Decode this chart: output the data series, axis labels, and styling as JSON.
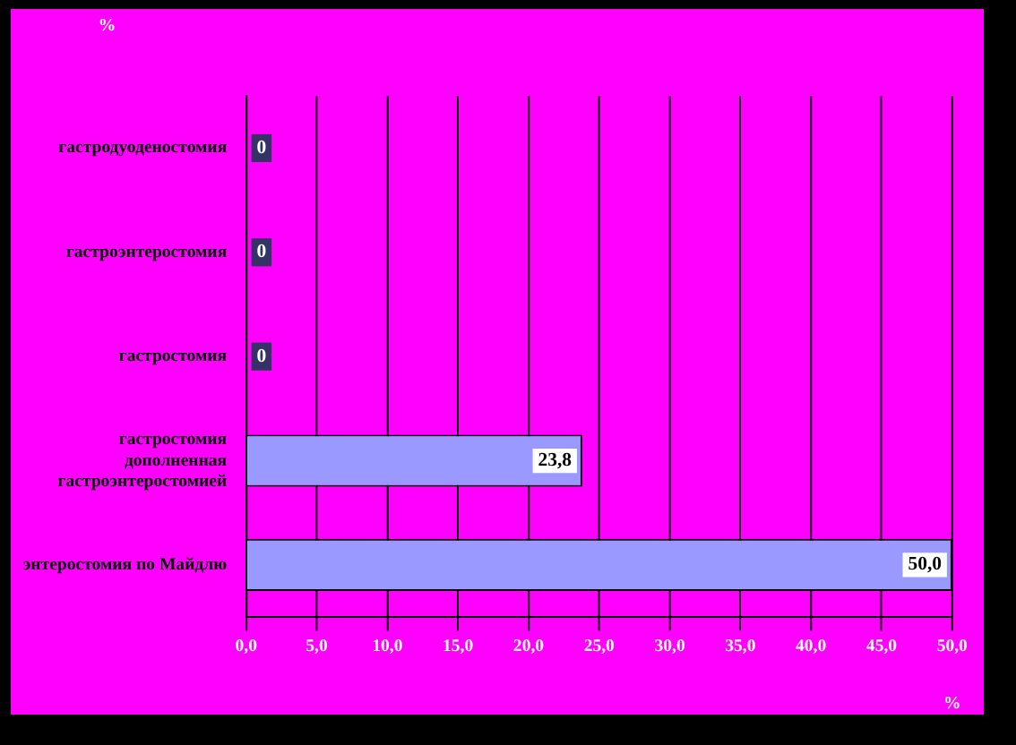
{
  "chart_data": {
    "type": "bar",
    "orientation": "horizontal",
    "xlabel": "%",
    "ylabel": "%",
    "categories": [
      "гастродуоденостомия",
      "гастроэнтеростомия",
      "гастростомия",
      "гастростомия дополненная гастроэнтеростомией",
      "энтеростомия по Майдлю"
    ],
    "values": [
      0,
      0,
      0,
      23.8,
      50.0
    ],
    "color": "#9999ff",
    "value_labels": [
      "0",
      "0",
      "0",
      "23,8",
      "50,0"
    ],
    "xlim": [
      0,
      50
    ],
    "xticks": [
      {
        "value": 0,
        "label": "0,0"
      },
      {
        "value": 5,
        "label": "5,0"
      },
      {
        "value": 10,
        "label": "10,0"
      },
      {
        "value": 15,
        "label": "15,0"
      },
      {
        "value": 20,
        "label": "20,0"
      },
      {
        "value": 25,
        "label": "25,0"
      },
      {
        "value": 30,
        "label": "30,0"
      },
      {
        "value": 35,
        "label": "35,0"
      },
      {
        "value": 40,
        "label": "40,0"
      },
      {
        "value": 45,
        "label": "45,0"
      },
      {
        "value": 50,
        "label": "50,0"
      }
    ],
    "grid": "x",
    "legend": false
  }
}
